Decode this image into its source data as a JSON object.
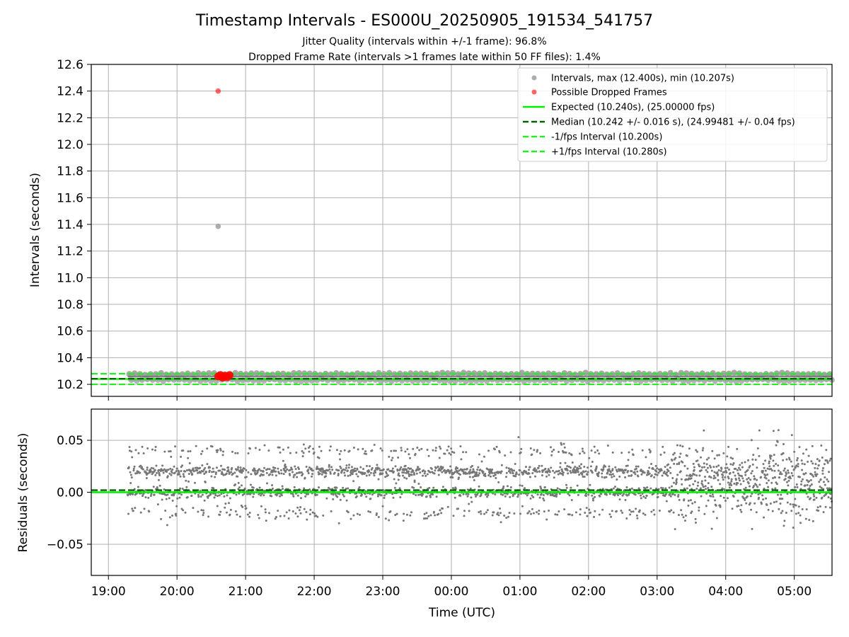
{
  "figure": {
    "title": "Timestamp Intervals - ES000U_20250905_191534_541757",
    "subtitle_line1": "Jitter Quality (intervals within +/-1 frame): 96.8%",
    "subtitle_line2": "Dropped Frame Rate (intervals >1 frames late within 50 FF files): 1.4%"
  },
  "colors": {
    "intervals": "#999999",
    "dropped": "#ff0000",
    "expected": "#00ee00",
    "median": "#006400",
    "fps_bounds": "#22ee22",
    "residuals": "#777777",
    "grid": "#b0b0b0"
  },
  "chart_data": [
    {
      "type": "scatter",
      "ylabel": "Intervals (seconds)",
      "ylim": [
        10.11,
        12.6
      ],
      "yticks": [
        10.2,
        10.4,
        10.6,
        10.8,
        11.0,
        11.2,
        11.4,
        11.6,
        11.8,
        12.0,
        12.2,
        12.4,
        12.6
      ],
      "ytick_labels": [
        "10.2",
        "10.4",
        "10.6",
        "10.8",
        "11.0",
        "11.2",
        "11.4",
        "11.6",
        "11.8",
        "12.0",
        "12.2",
        "12.4",
        "12.6"
      ],
      "xlim_hours": [
        18.75,
        29.55
      ],
      "grid": true,
      "legend_position": "top-right",
      "legend": [
        {
          "label": "Intervals, max (12.400s), min (10.207s)",
          "kind": "marker",
          "color_key": "intervals"
        },
        {
          "label": "Possible Dropped Frames",
          "kind": "marker",
          "color_key": "dropped"
        },
        {
          "label": "Expected (10.240s), (25.00000 fps)",
          "kind": "solid",
          "color_key": "expected"
        },
        {
          "label": "Median (10.242 +/- 0.016 s), (24.99481 +/- 0.04 fps)",
          "kind": "dashed",
          "color_key": "median"
        },
        {
          "label": "-1/fps Interval (10.200s)",
          "kind": "dashed",
          "color_key": "fps_bounds"
        },
        {
          "label": "+1/fps Interval (10.280s)",
          "kind": "dashed",
          "color_key": "fps_bounds"
        }
      ],
      "reference_lines": [
        {
          "name": "Expected",
          "y": 10.24,
          "style": "solid",
          "color_key": "expected"
        },
        {
          "name": "Median",
          "y": 10.242,
          "style": "dashed",
          "color_key": "median"
        },
        {
          "name": "-1/fps Interval",
          "y": 10.2,
          "style": "dashed",
          "color_key": "fps_bounds"
        },
        {
          "name": "+1/fps Interval",
          "y": 10.28,
          "style": "dashed",
          "color_key": "fps_bounds"
        }
      ],
      "outlier_points": [
        {
          "x": "20:36",
          "y": 11.385,
          "series": "Intervals"
        },
        {
          "x": "20:36",
          "y": 12.4,
          "series": "Possible Dropped Frames"
        }
      ],
      "dropped_cluster": [
        {
          "x": "20:36",
          "y": 10.26
        },
        {
          "x": "20:38",
          "y": 10.27
        },
        {
          "x": "20:40",
          "y": 10.25
        },
        {
          "x": "20:42",
          "y": 10.265
        },
        {
          "x": "20:44",
          "y": 10.255
        },
        {
          "x": "20:46",
          "y": 10.27
        }
      ],
      "interval_band": {
        "x_start": "19:17",
        "x_end": "05:33",
        "y_low": 10.225,
        "y_high": 10.285
      }
    },
    {
      "type": "scatter",
      "ylabel": "Residuals (seconds)",
      "xlabel": "Time (UTC)",
      "ylim": [
        -0.08,
        0.08
      ],
      "yticks": [
        -0.05,
        0.0,
        0.05
      ],
      "ytick_labels": [
        "−0.05",
        "0.00",
        "0.05"
      ],
      "xlim_hours": [
        18.75,
        29.55
      ],
      "xticks_hours": [
        19,
        20,
        21,
        22,
        23,
        24,
        25,
        26,
        27,
        28,
        29
      ],
      "xtick_labels": [
        "19:00",
        "20:00",
        "21:00",
        "22:00",
        "23:00",
        "00:00",
        "01:00",
        "02:00",
        "03:00",
        "04:00",
        "05:00"
      ],
      "grid": true,
      "reference_lines": [
        {
          "name": "Expected",
          "y": 0.0,
          "style": "solid",
          "color_key": "expected"
        },
        {
          "name": "Median",
          "y": 0.002,
          "style": "dashed",
          "color_key": "median"
        }
      ],
      "residual_levels": [
        -0.02,
        0.0,
        0.02,
        0.04
      ],
      "residual_range_hours": [
        19.28,
        29.55
      ],
      "residual_spread": 0.004,
      "residual_spread_late": 0.012
    }
  ]
}
